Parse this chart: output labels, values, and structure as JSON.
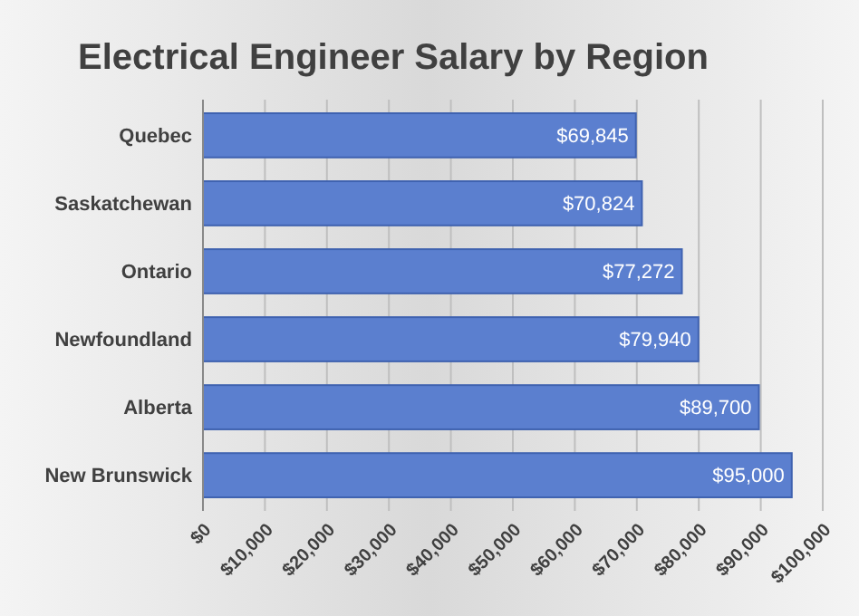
{
  "chart_data": {
    "type": "bar",
    "orientation": "horizontal",
    "title": "Electrical Engineer Salary by Region",
    "categories": [
      "Quebec",
      "Saskatchewan",
      "Ontario",
      "Newfoundland",
      "Alberta",
      "New Brunswick"
    ],
    "values": [
      69845,
      70824,
      77272,
      79940,
      89700,
      95000
    ],
    "value_labels": [
      "$69,845",
      "$70,824",
      "$77,272",
      "$79,940",
      "$89,700",
      "$95,000"
    ],
    "color": "#5b7fcf",
    "xlim": [
      0,
      100000
    ],
    "xticks": [
      {
        "value": 0,
        "label": "$0"
      },
      {
        "value": 10000,
        "label": "$10,000"
      },
      {
        "value": 20000,
        "label": "$20,000"
      },
      {
        "value": 30000,
        "label": "$30,000"
      },
      {
        "value": 40000,
        "label": "$40,000"
      },
      {
        "value": 50000,
        "label": "$50,000"
      },
      {
        "value": 60000,
        "label": "$60,000"
      },
      {
        "value": 70000,
        "label": "$70,000"
      },
      {
        "value": 80000,
        "label": "$80,000"
      },
      {
        "value": 90000,
        "label": "$90,000"
      },
      {
        "value": 100000,
        "label": "$100,000"
      }
    ],
    "grid": "x"
  }
}
